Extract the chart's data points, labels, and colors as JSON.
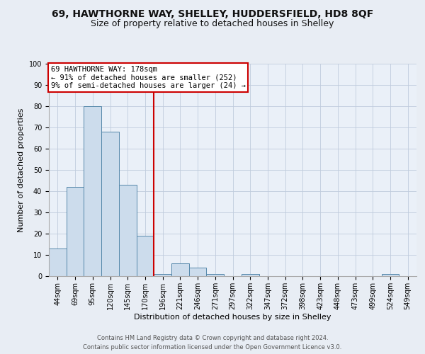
{
  "title1": "69, HAWTHORNE WAY, SHELLEY, HUDDERSFIELD, HD8 8QF",
  "title2": "Size of property relative to detached houses in Shelley",
  "xlabel": "Distribution of detached houses by size in Shelley",
  "ylabel": "Number of detached properties",
  "bins": [
    "44sqm",
    "69sqm",
    "95sqm",
    "120sqm",
    "145sqm",
    "170sqm",
    "196sqm",
    "221sqm",
    "246sqm",
    "271sqm",
    "297sqm",
    "322sqm",
    "347sqm",
    "372sqm",
    "398sqm",
    "423sqm",
    "448sqm",
    "473sqm",
    "499sqm",
    "524sqm",
    "549sqm"
  ],
  "values": [
    13,
    42,
    80,
    68,
    43,
    19,
    1,
    6,
    4,
    1,
    0,
    1,
    0,
    0,
    0,
    0,
    0,
    0,
    0,
    1,
    0
  ],
  "bar_color": "#ccdcec",
  "bar_edge_color": "#5588aa",
  "vline_color": "#cc0000",
  "annotation_text": "69 HAWTHORNE WAY: 178sqm\n← 91% of detached houses are smaller (252)\n9% of semi-detached houses are larger (24) →",
  "annotation_box_color": "#ffffff",
  "annotation_box_edge": "#cc0000",
  "footnote1": "Contains HM Land Registry data © Crown copyright and database right 2024.",
  "footnote2": "Contains public sector information licensed under the Open Government Licence v3.0.",
  "ylim": [
    0,
    100
  ],
  "yticks": [
    0,
    10,
    20,
    30,
    40,
    50,
    60,
    70,
    80,
    90,
    100
  ],
  "background_color": "#e8edf4",
  "plot_bg_color": "#eaf0f8",
  "grid_color": "#c0ccdd",
  "title1_fontsize": 10,
  "title2_fontsize": 9,
  "xlabel_fontsize": 8,
  "ylabel_fontsize": 8,
  "tick_fontsize": 7,
  "annot_fontsize": 7.5
}
